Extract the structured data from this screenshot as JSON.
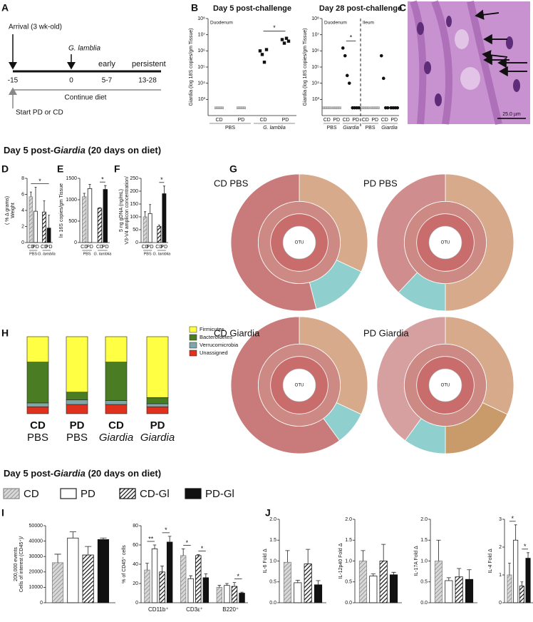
{
  "panel_letters": [
    "A",
    "B",
    "C",
    "D",
    "E",
    "F",
    "G",
    "H",
    "I",
    "J"
  ],
  "timeline": {
    "arrival": "Arrival (3 wk-old)",
    "challenge": "G. lamblia",
    "early": "early",
    "persistent": "persistent",
    "ticks": [
      "-15",
      "0",
      "5-7",
      "13-28"
    ],
    "continue": "Continue diet",
    "start": "Start PD or CD"
  },
  "infection": {
    "left": {
      "title": "Day 5 post-challenge",
      "ylabel": [
        "Giardia (log 18S copies/gm Tissue)"
      ],
      "log": true,
      "marker": "square",
      "ylim": [
        100,
        100000000
      ],
      "yticks": [
        {
          "value": 1000,
          "label": "10³"
        },
        {
          "value": 10000,
          "label": "10⁴"
        },
        {
          "value": 100000,
          "label": "10⁵"
        },
        {
          "value": 1000000,
          "label": "10⁶"
        },
        {
          "value": 10000000,
          "label": "10⁷"
        },
        {
          "value": 100000000,
          "label": "10⁸"
        }
      ],
      "regions": [
        {
          "label": "Duodenum",
          "groups": [
            {
              "label": "PBS",
              "categories": [
                "CD",
                "PD"
              ],
              "values": [
                [
                  300,
                  300,
                  300,
                  300
                ],
                [
                  300,
                  300,
                  300,
                  300
                ]
              ]
            },
            {
              "label": "G. lamblia",
              "categories": [
                "CD",
                "PD"
              ],
              "values": [
                [
                  1000000,
                  600000,
                  200000,
                  1200000
                ],
                [
                  5000000,
                  3000000,
                  6000000,
                  4000000
                ]
              ]
            }
          ]
        }
      ],
      "significance": [
        {
          "label": "*",
          "columns": [
            2,
            3
          ]
        }
      ]
    },
    "right": {
      "title": "Day 28 post-challenge",
      "ylabel": [
        "Giardia (log 18S copies/gm Tissue)"
      ],
      "log": true,
      "marker": "circle",
      "ylim": [
        100,
        100000000
      ],
      "yticks": [
        {
          "value": 1000,
          "label": "10³"
        },
        {
          "value": 10000,
          "label": "10⁴"
        },
        {
          "value": 100000,
          "label": "10⁵"
        },
        {
          "value": 1000000,
          "label": "10⁶"
        },
        {
          "value": 10000000,
          "label": "10⁷"
        },
        {
          "value": 100000000,
          "label": "10⁸"
        }
      ],
      "regions": [
        {
          "label": "Duodenum",
          "groups": [
            {
              "label": "PBS",
              "categories": [
                "CD",
                "PD"
              ],
              "values": [
                [
                  300,
                  300,
                  300,
                  300
                ],
                [
                  300,
                  300,
                  300,
                  300
                ]
              ]
            },
            {
              "label": "Giardia",
              "categories": [
                "CD",
                "PD"
              ],
              "values": [
                [
                  1500000,
                  500000,
                  30000,
                  10000
                ],
                [
                  300,
                  300,
                  300,
                  300
                ]
              ]
            }
          ]
        },
        {
          "label": "Ileum",
          "groups": [
            {
              "label": "PBS",
              "categories": [
                "CD",
                "PD"
              ],
              "values": [
                [
                  300,
                  300,
                  300,
                  300
                ],
                [
                  300,
                  300,
                  300,
                  300
                ]
              ]
            },
            {
              "label": "Giardia",
              "categories": [
                "CD",
                "PD"
              ],
              "values": [
                [
                  500000,
                  20000,
                  300,
                  300
                ],
                [
                  300,
                  300,
                  300,
                  300
                ]
              ]
            }
          ]
        }
      ],
      "significance": [
        {
          "label": "*",
          "columns": [
            2,
            3
          ]
        }
      ]
    }
  },
  "micrograph": {
    "scale": "25.0 µm"
  },
  "headers": [
    [
      "Day 5 post-",
      "Giardia",
      " (20 days on diet)"
    ],
    [
      "Day 5 post-",
      "Giardia",
      " (20 days on diet)"
    ]
  ],
  "weight": {
    "ylabel": [
      "Weight",
      "( % Δ grams)"
    ],
    "ylim": [
      0,
      8
    ],
    "yticks": [
      0,
      2,
      4,
      6,
      8
    ],
    "groups": [
      {
        "label": "PBS",
        "categories": [
          "CD",
          "PD"
        ],
        "values": [
          5.7,
          3.9
        ],
        "errors": [
          0.6,
          3.0
        ]
      },
      {
        "label": "G. lamblia",
        "categories": [
          "CD",
          "PD"
        ],
        "values": [
          3.8,
          1.8
        ],
        "errors": [
          1.4,
          1.6
        ]
      }
    ],
    "significance": [
      {
        "label": "*",
        "bars": [
          0,
          3
        ]
      }
    ]
  },
  "copies": {
    "ylabel": [
      "ln 16S copies/gm Tissue"
    ],
    "ylim": [
      0,
      1500
    ],
    "yticks": [
      0,
      500,
      1000,
      1500
    ],
    "groups": [
      {
        "label": "PBS",
        "categories": [
          "CD",
          "PD"
        ],
        "values": [
          1070,
          1260
        ],
        "errors": [
          80,
          100
        ]
      },
      {
        "label": "G. lamblia",
        "categories": [
          "CD",
          "PD"
        ],
        "values": [
          800,
          1240
        ],
        "errors": [
          15,
          90
        ]
      }
    ],
    "significance": [
      {
        "label": "*",
        "bars": [
          2,
          3
        ]
      }
    ]
  },
  "amplicon": {
    "ylabel": [
      "V3-V4 amplicon concentration/",
      "5 ng gDNA (ng/mL)"
    ],
    "ylim": [
      0,
      250
    ],
    "yticks": [
      0,
      50,
      100,
      150,
      200,
      250
    ],
    "groups": [
      {
        "label": "PBS",
        "categories": [
          "CD",
          "PD"
        ],
        "values": [
          100,
          113
        ],
        "errors": [
          20,
          35
        ]
      },
      {
        "label": "G. lamblia",
        "categories": [
          "CD",
          "PD"
        ],
        "values": [
          63,
          190
        ],
        "errors": [
          5,
          30
        ]
      }
    ],
    "significance": [
      {
        "label": "*",
        "bars": [
          2,
          3
        ]
      }
    ]
  },
  "krona": {
    "center": "OTU",
    "charts": [
      {
        "title": "CD PBS",
        "segments": [
          {
            "value": 32,
            "color": "#d8aa8c"
          },
          {
            "value": 14,
            "color": "#8fd0cf"
          },
          {
            "value": 54,
            "color": "#c97b7b"
          }
        ]
      },
      {
        "title": "PD PBS",
        "segments": [
          {
            "value": 50,
            "color": "#d8aa8c"
          },
          {
            "value": 12,
            "color": "#8fd0cf"
          },
          {
            "value": 38,
            "color": "#cf8d8d"
          }
        ]
      },
      {
        "title": "CD Giardia",
        "segments": [
          {
            "value": 32,
            "color": "#d8aa8c"
          },
          {
            "value": 8,
            "color": "#8fd0cf"
          },
          {
            "value": 60,
            "color": "#c97b7b"
          }
        ]
      },
      {
        "title": "PD Giardia",
        "segments": [
          {
            "value": 32,
            "color": "#d8aa8c"
          },
          {
            "value": 18,
            "color": "#c99a6a"
          },
          {
            "value": 10,
            "color": "#8fd0cf"
          },
          {
            "value": 40,
            "color": "#d6a0a0"
          }
        ]
      }
    ]
  },
  "phyla": {
    "categories": [
      [
        "CD",
        "PBS"
      ],
      [
        "PD",
        "PBS"
      ],
      [
        "CD",
        "Giardia"
      ],
      [
        "PD",
        "Giardia"
      ]
    ],
    "series": [
      {
        "name": "Firmicutes",
        "color": "#ffff44",
        "values": [
          33,
          72,
          33,
          79
        ]
      },
      {
        "name": "Bacteroidetes",
        "color": "#4a7d23",
        "values": [
          53,
          10,
          50,
          8
        ]
      },
      {
        "name": "Verrucomicrobia",
        "color": "#7fa7a7",
        "values": [
          5,
          6,
          5,
          4
        ]
      },
      {
        "name": "Unassigned",
        "color": "#e0301e",
        "values": [
          9,
          12,
          12,
          9
        ]
      }
    ]
  },
  "legend": {
    "items": [
      {
        "name": "CD",
        "style": "hatch"
      },
      {
        "name": "PD",
        "style": "white"
      },
      {
        "name": "CD-Gl",
        "style": "hatchdark"
      },
      {
        "name": "PD-Gl",
        "style": "black"
      }
    ]
  },
  "cells": {
    "ylabel": [
      "Cells of interest (CD45⁺)/",
      "200,000 events"
    ],
    "ylim": [
      0,
      50000
    ],
    "yticks": [
      0,
      10000,
      20000,
      30000,
      40000,
      50000
    ],
    "groups": [
      {
        "values": [
          26000,
          42000,
          31000,
          41000
        ],
        "errors": [
          5500,
          4000,
          5500,
          1000
        ]
      }
    ]
  },
  "percent": {
    "ylabel": [
      "% of CD45⁺ cells"
    ],
    "ylim": [
      0,
      80
    ],
    "yticks": [
      0,
      20,
      40,
      60,
      80
    ],
    "groups": [
      {
        "label": "CD11b⁺",
        "values": [
          34,
          56,
          32,
          63
        ],
        "errors": [
          7,
          4,
          6,
          6
        ]
      },
      {
        "label": "CD3ε⁺",
        "values": [
          49,
          25,
          49,
          26
        ],
        "errors": [
          7,
          3,
          1,
          4
        ]
      },
      {
        "label": "B220⁺",
        "values": [
          16,
          18,
          17,
          10
        ],
        "errors": [
          2,
          2,
          4,
          1
        ]
      }
    ],
    "significance": [
      {
        "label": "**",
        "bars": [
          0,
          1
        ]
      },
      {
        "label": "*",
        "bars": [
          2,
          3
        ]
      },
      {
        "label": "*",
        "bars": [
          4,
          5
        ]
      },
      {
        "label": "*",
        "bars": [
          6,
          7
        ]
      },
      {
        "label": "*",
        "bars": [
          10,
          11
        ]
      }
    ]
  },
  "cytokines": [
    {
      "ylabel": [
        "IL-6 Fold Δ"
      ],
      "ylim": [
        0,
        2
      ],
      "yticks": [
        {
          "value": 0,
          "label": "0.0"
        },
        0.5,
        {
          "value": 1,
          "label": "1.0"
        },
        1.5,
        {
          "value": 2,
          "label": "2.0"
        }
      ],
      "groups": [
        {
          "values": [
            0.97,
            0.48,
            0.93,
            0.43
          ],
          "errors": [
            0.28,
            0.06,
            0.35,
            0.1
          ]
        }
      ]
    },
    {
      "ylabel": [
        "IL-12p40 Fold Δ"
      ],
      "ylim": [
        0,
        2
      ],
      "yticks": [
        {
          "value": 0,
          "label": "0.0"
        },
        0.5,
        {
          "value": 1,
          "label": "1.0"
        },
        1.5,
        {
          "value": 2,
          "label": "2.0"
        }
      ],
      "groups": [
        {
          "values": [
            1.0,
            0.64,
            1.0,
            0.67
          ],
          "errors": [
            0.25,
            0.05,
            0.4,
            0.06
          ]
        }
      ]
    },
    {
      "ylabel": [
        "IL-17A Fold Δ"
      ],
      "ylim": [
        0,
        2
      ],
      "yticks": [
        {
          "value": 0,
          "label": "0.0"
        },
        0.5,
        {
          "value": 1,
          "label": "1.0"
        },
        1.5,
        {
          "value": 2,
          "label": "2.0"
        }
      ],
      "groups": [
        {
          "values": [
            1.0,
            0.53,
            0.62,
            0.56
          ],
          "errors": [
            0.5,
            0.07,
            0.2,
            0.23
          ]
        }
      ]
    },
    {
      "ylabel": [
        "IL-4 Fold Δ"
      ],
      "ylim": [
        0,
        3
      ],
      "yticks": [
        0,
        1,
        2,
        3
      ],
      "groups": [
        {
          "values": [
            1.0,
            2.25,
            0.6,
            1.6
          ],
          "errors": [
            0.42,
            0.55,
            0.15,
            0.2
          ]
        }
      ],
      "significance": [
        {
          "label": "*",
          "bars": [
            0,
            1
          ]
        },
        {
          "label": "*",
          "bars": [
            2,
            3
          ]
        }
      ]
    }
  ]
}
